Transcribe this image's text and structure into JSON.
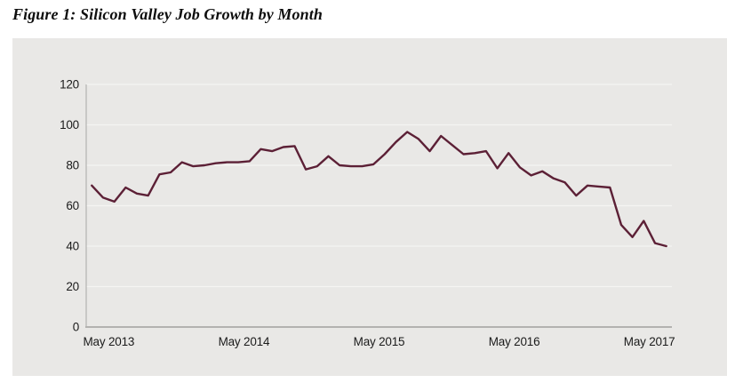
{
  "figure": {
    "title": "Figure 1: Silicon Valley Job Growth by Month"
  },
  "chart_data": {
    "type": "line",
    "title": "Figure 1: Silicon Valley Job Growth by Month",
    "values": [
      70,
      64,
      62,
      69,
      66,
      65,
      75.5,
      76.5,
      81.5,
      79.5,
      80,
      81,
      81.5,
      81.5,
      82,
      88,
      87,
      89,
      89.5,
      78,
      79.5,
      84.5,
      80,
      79.5,
      79.5,
      80.5,
      85.5,
      91.5,
      96.5,
      93,
      87,
      94.5,
      90,
      85.5,
      86,
      87,
      78.5,
      86,
      79,
      75,
      77,
      73.5,
      71.5,
      65,
      70,
      69.5,
      69,
      50.5,
      44.5,
      52.5,
      41.5,
      40
    ],
    "x_tick_labels": [
      {
        "label": "May 2013",
        "month_index": 2
      },
      {
        "label": "May 2014",
        "month_index": 14
      },
      {
        "label": "May 2015",
        "month_index": 26
      },
      {
        "label": "May 2016",
        "month_index": 38
      },
      {
        "label": "May 2017",
        "month_index": 50
      }
    ],
    "y_ticks": [
      0,
      20,
      40,
      60,
      80,
      100,
      120
    ],
    "ylim": [
      0,
      120
    ],
    "grid": true,
    "legend": "none",
    "line_color": "#5c2036",
    "plot_bg_color": "#e9e8e6",
    "gridline_color": "#f5f4f2",
    "axis_color": "#a8a7a5",
    "baseline_color": "#b3b2b0",
    "label_color": "#1b1b1b"
  }
}
